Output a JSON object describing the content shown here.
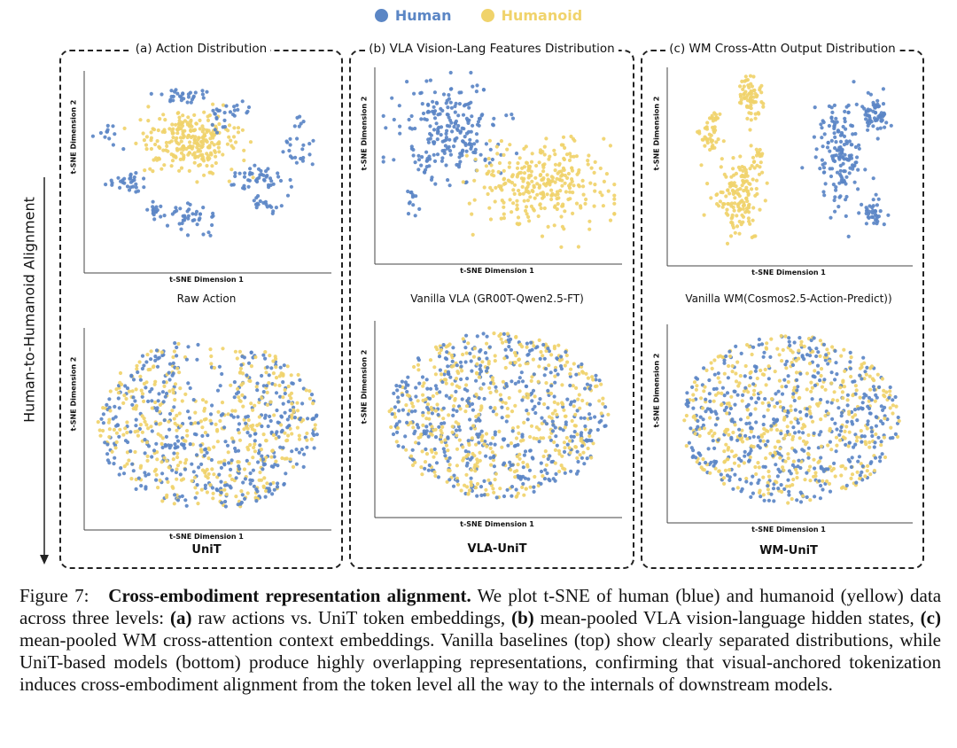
{
  "legend": {
    "items": [
      {
        "label": "Human",
        "color": "#5b86c5"
      },
      {
        "label": "Humanoid",
        "color": "#f0d36b"
      }
    ]
  },
  "side_label": "Human-to-Humanoid Alignment",
  "panels": [
    {
      "title": "(a) Action Distribution"
    },
    {
      "title": "(b) VLA Vision-Lang Features Distribution"
    },
    {
      "title": "(c) WM Cross-Attn Output Distribution"
    }
  ],
  "chart_data": [
    {
      "type": "scatter",
      "id": "a_top",
      "title": "Raw Action",
      "xlabel": "t-SNE Dimension 1",
      "ylabel": "t-SNE Dimension 2",
      "series": [
        {
          "name": "Human",
          "color": "#5b86c5"
        },
        {
          "name": "Humanoid",
          "color": "#f0d36b"
        }
      ],
      "pattern": "separated"
    },
    {
      "type": "scatter",
      "id": "a_bottom",
      "title": "UniT",
      "xlabel": "t-SNE Dimension 1",
      "ylabel": "t-SNE Dimension 2",
      "series": [
        {
          "name": "Human",
          "color": "#5b86c5"
        },
        {
          "name": "Humanoid",
          "color": "#f0d36b"
        }
      ],
      "pattern": "overlapping"
    },
    {
      "type": "scatter",
      "id": "b_top",
      "title": "Vanilla VLA (GR00T-Qwen2.5-FT)",
      "xlabel": "t-SNE Dimension 1",
      "ylabel": "t-SNE Dimension 2",
      "series": [
        {
          "name": "Human",
          "color": "#5b86c5"
        },
        {
          "name": "Humanoid",
          "color": "#f0d36b"
        }
      ],
      "pattern": "separated"
    },
    {
      "type": "scatter",
      "id": "b_bottom",
      "title": "VLA-UniT",
      "xlabel": "t-SNE Dimension 1",
      "ylabel": "t-SNE Dimension 2",
      "series": [
        {
          "name": "Human",
          "color": "#5b86c5"
        },
        {
          "name": "Humanoid",
          "color": "#f0d36b"
        }
      ],
      "pattern": "overlapping"
    },
    {
      "type": "scatter",
      "id": "c_top",
      "title": "Vanilla WM(Cosmos2.5-Action-Predict))",
      "xlabel": "t-SNE Dimension 1",
      "ylabel": "t-SNE Dimension 2",
      "series": [
        {
          "name": "Human",
          "color": "#5b86c5"
        },
        {
          "name": "Humanoid",
          "color": "#f0d36b"
        }
      ],
      "pattern": "separated"
    },
    {
      "type": "scatter",
      "id": "c_bottom",
      "title": "WM-UniT",
      "xlabel": "t-SNE Dimension 1",
      "ylabel": "t-SNE Dimension 2",
      "series": [
        {
          "name": "Human",
          "color": "#5b86c5"
        },
        {
          "name": "Humanoid",
          "color": "#f0d36b"
        }
      ],
      "pattern": "overlapping"
    }
  ],
  "caption": {
    "label": "Figure 7:",
    "title": "Cross-embodiment representation alignment.",
    "seg1": " We plot t-SNE of human (blue) and humanoid (yellow) data across three levels: ",
    "a": "(a)",
    "seg2": " raw actions vs. UniT token embeddings, ",
    "b": "(b)",
    "seg3": " mean-pooled VLA vision-language hidden states, ",
    "c": "(c)",
    "seg4": " mean-pooled WM cross-attention context embeddings. Vanilla baselines (top) show clearly separated distributions, while UniT-based models (bottom) produce highly overlapping representations, confirming that visual-anchored tokenization induces cross-embodiment alignment from the token level all the way to the internals of downstream models."
  }
}
